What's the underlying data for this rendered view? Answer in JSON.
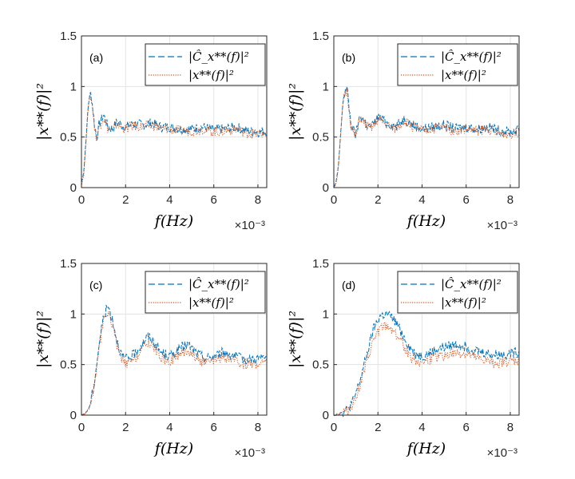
{
  "chart_data": [
    {
      "type": "line",
      "panel_label": "(a)",
      "xlabel": "f(Hz)",
      "ylabel": "|x**(f)|²",
      "x_exponent_label": "×10⁻³",
      "xlim": [
        0,
        8.4
      ],
      "ylim": [
        0,
        1.5
      ],
      "xticks": [
        "0",
        "2",
        "4",
        "6",
        "8"
      ],
      "yticks": [
        "0",
        "0.5",
        "1",
        "1.5"
      ],
      "grid": true,
      "legend_position": "top-right",
      "x": [
        0,
        0.1,
        0.2,
        0.3,
        0.4,
        0.5,
        0.6,
        0.7,
        0.8,
        1.0,
        1.2,
        1.4,
        1.6,
        1.8,
        2.0,
        2.4,
        2.8,
        3.2,
        3.6,
        4.0,
        4.5,
        5.0,
        5.5,
        6.0,
        6.5,
        7.0,
        7.5,
        8.0,
        8.4
      ],
      "series": [
        {
          "name": "|Ĉ_x**(f)|²",
          "color": "#0072bd",
          "style": "dashed",
          "values": [
            0.05,
            0.15,
            0.45,
            0.8,
            0.95,
            0.82,
            0.6,
            0.5,
            0.62,
            0.72,
            0.6,
            0.58,
            0.65,
            0.62,
            0.6,
            0.63,
            0.62,
            0.64,
            0.6,
            0.6,
            0.58,
            0.58,
            0.6,
            0.57,
            0.58,
            0.6,
            0.56,
            0.55,
            0.56
          ]
        },
        {
          "name": "|x**(f)|²",
          "color": "#d95319",
          "style": "dotted",
          "values": [
            0.02,
            0.12,
            0.42,
            0.78,
            0.93,
            0.8,
            0.58,
            0.48,
            0.6,
            0.7,
            0.58,
            0.56,
            0.63,
            0.6,
            0.58,
            0.61,
            0.6,
            0.62,
            0.58,
            0.58,
            0.56,
            0.56,
            0.58,
            0.55,
            0.56,
            0.58,
            0.54,
            0.53,
            0.54
          ]
        }
      ]
    },
    {
      "type": "line",
      "panel_label": "(b)",
      "xlabel": "f(Hz)",
      "ylabel": "|x**(f)|²",
      "x_exponent_label": "×10⁻³",
      "xlim": [
        0,
        8.4
      ],
      "ylim": [
        0,
        1.5
      ],
      "xticks": [
        "0",
        "2",
        "4",
        "6",
        "8"
      ],
      "yticks": [
        "0",
        "0.5",
        "1",
        "1.5"
      ],
      "grid": true,
      "legend_position": "top-right",
      "x": [
        0,
        0.1,
        0.2,
        0.3,
        0.4,
        0.5,
        0.6,
        0.7,
        0.8,
        1.0,
        1.2,
        1.4,
        1.6,
        1.8,
        2.0,
        2.4,
        2.8,
        3.2,
        3.6,
        4.0,
        4.5,
        5.0,
        5.5,
        6.0,
        6.5,
        7.0,
        7.5,
        8.0,
        8.4
      ],
      "series": [
        {
          "name": "|Ĉ_x**(f)|²",
          "color": "#0072bd",
          "style": "dashed",
          "values": [
            0.0,
            0.05,
            0.2,
            0.5,
            0.82,
            0.95,
            0.98,
            0.78,
            0.6,
            0.52,
            0.72,
            0.65,
            0.6,
            0.62,
            0.7,
            0.64,
            0.6,
            0.68,
            0.62,
            0.58,
            0.6,
            0.62,
            0.58,
            0.6,
            0.58,
            0.6,
            0.56,
            0.55,
            0.57
          ]
        },
        {
          "name": "|x**(f)|²",
          "color": "#d95319",
          "style": "dotted",
          "values": [
            0.0,
            0.04,
            0.18,
            0.48,
            0.8,
            0.93,
            0.95,
            0.76,
            0.58,
            0.5,
            0.7,
            0.63,
            0.58,
            0.6,
            0.68,
            0.62,
            0.58,
            0.66,
            0.6,
            0.56,
            0.58,
            0.6,
            0.56,
            0.58,
            0.56,
            0.58,
            0.54,
            0.53,
            0.55
          ]
        }
      ]
    },
    {
      "type": "line",
      "panel_label": "(c)",
      "xlabel": "f(Hz)",
      "ylabel": "|x**(f)|²",
      "x_exponent_label": "×10⁻³",
      "xlim": [
        0,
        8.4
      ],
      "ylim": [
        0,
        1.5
      ],
      "xticks": [
        "0",
        "2",
        "4",
        "6",
        "8"
      ],
      "yticks": [
        "0",
        "0.5",
        "1",
        "1.5"
      ],
      "grid": true,
      "legend_position": "top-right",
      "x": [
        0,
        0.2,
        0.4,
        0.6,
        0.8,
        1.0,
        1.2,
        1.4,
        1.6,
        1.8,
        2.0,
        2.4,
        2.8,
        3.0,
        3.2,
        3.6,
        4.0,
        4.4,
        4.8,
        5.2,
        5.6,
        6.0,
        6.4,
        6.8,
        7.2,
        7.6,
        8.0,
        8.4
      ],
      "series": [
        {
          "name": "|Ĉ_x**(f)|²",
          "color": "#0072bd",
          "style": "dashed",
          "values": [
            0.0,
            0.02,
            0.1,
            0.35,
            0.7,
            0.98,
            1.08,
            0.95,
            0.75,
            0.6,
            0.55,
            0.6,
            0.72,
            0.78,
            0.75,
            0.62,
            0.58,
            0.65,
            0.7,
            0.62,
            0.56,
            0.58,
            0.62,
            0.6,
            0.56,
            0.55,
            0.56,
            0.57
          ]
        },
        {
          "name": "|x**(f)|²",
          "color": "#d95319",
          "style": "dotted",
          "values": [
            0.0,
            0.02,
            0.09,
            0.32,
            0.66,
            0.93,
            1.02,
            0.9,
            0.7,
            0.56,
            0.5,
            0.55,
            0.66,
            0.72,
            0.7,
            0.57,
            0.53,
            0.6,
            0.64,
            0.57,
            0.51,
            0.53,
            0.57,
            0.55,
            0.51,
            0.5,
            0.51,
            0.52
          ]
        }
      ]
    },
    {
      "type": "line",
      "panel_label": "(d)",
      "xlabel": "f(Hz)",
      "ylabel": "|x**(f)|²",
      "x_exponent_label": "×10⁻³",
      "xlim": [
        0,
        8.4
      ],
      "ylim": [
        0,
        1.5
      ],
      "xticks": [
        "0",
        "2",
        "4",
        "6",
        "8"
      ],
      "yticks": [
        "0",
        "0.5",
        "1",
        "1.5"
      ],
      "grid": true,
      "legend_position": "top-right",
      "x": [
        0,
        0.3,
        0.6,
        0.9,
        1.2,
        1.5,
        1.8,
        2.1,
        2.4,
        2.7,
        3.0,
        3.3,
        3.6,
        4.0,
        4.4,
        4.8,
        5.2,
        5.6,
        6.0,
        6.4,
        6.8,
        7.2,
        7.6,
        8.0,
        8.4
      ],
      "series": [
        {
          "name": "|Ĉ_x**(f)|²",
          "color": "#0072bd",
          "style": "dashed",
          "values": [
            0.0,
            0.02,
            0.05,
            0.15,
            0.35,
            0.6,
            0.85,
            0.98,
            1.0,
            0.95,
            0.85,
            0.72,
            0.62,
            0.58,
            0.62,
            0.66,
            0.68,
            0.7,
            0.68,
            0.64,
            0.62,
            0.6,
            0.6,
            0.61,
            0.62
          ]
        },
        {
          "name": "|x**(f)|²",
          "color": "#d95319",
          "style": "dotted",
          "values": [
            0.0,
            0.02,
            0.04,
            0.12,
            0.3,
            0.52,
            0.74,
            0.86,
            0.88,
            0.84,
            0.75,
            0.64,
            0.55,
            0.52,
            0.55,
            0.58,
            0.6,
            0.61,
            0.6,
            0.56,
            0.54,
            0.52,
            0.52,
            0.53,
            0.54
          ]
        }
      ]
    }
  ]
}
